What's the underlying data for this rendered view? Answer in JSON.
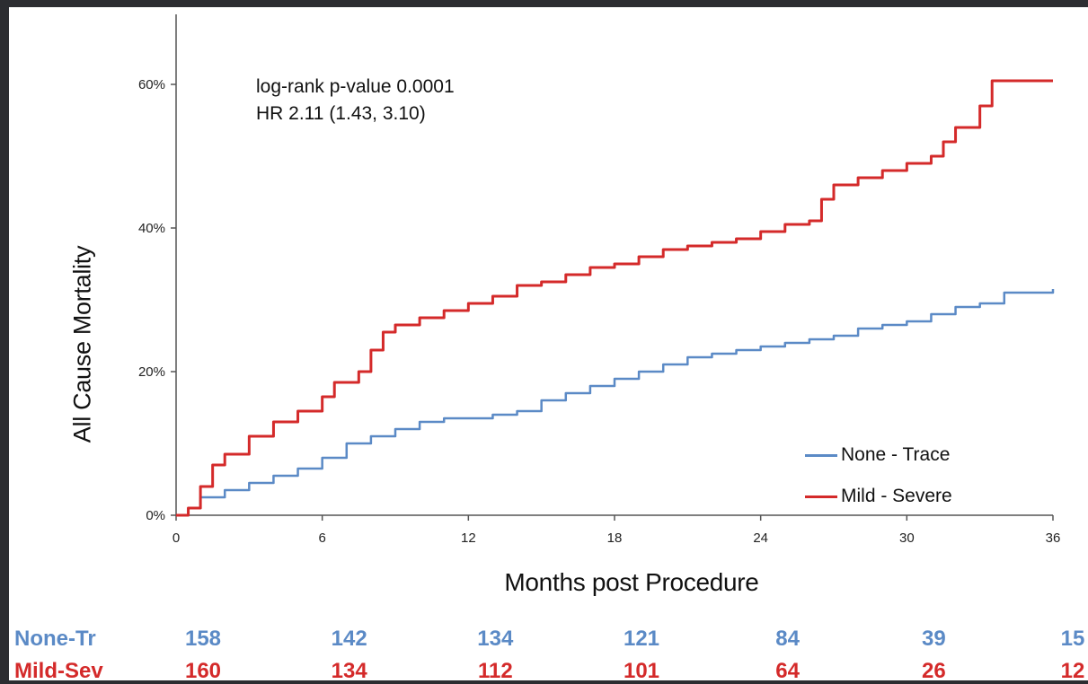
{
  "chart_data": {
    "type": "line",
    "step": true,
    "xlabel": "Months post Procedure",
    "ylabel": "All Cause Mortality",
    "xlim": [
      0,
      36
    ],
    "ylim": [
      0,
      0.68
    ],
    "x_ticks": [
      0,
      6,
      12,
      18,
      24,
      30,
      36
    ],
    "y_ticks": [
      0,
      0.2,
      0.4,
      0.6
    ],
    "y_tick_labels": [
      "0%",
      "20%",
      "40%",
      "60%"
    ],
    "grid": false,
    "legend_position": "bottom-right",
    "annotations": [
      "log-rank p-value 0.0001",
      "HR 2.11 (1.43, 3.10)"
    ],
    "series": [
      {
        "name": "None - Trace",
        "color": "#5b8ac6",
        "points": [
          [
            0,
            0
          ],
          [
            0.5,
            0.01
          ],
          [
            1,
            0.025
          ],
          [
            2,
            0.035
          ],
          [
            3,
            0.045
          ],
          [
            4,
            0.055
          ],
          [
            5,
            0.065
          ],
          [
            6,
            0.08
          ],
          [
            7,
            0.1
          ],
          [
            8,
            0.11
          ],
          [
            9,
            0.12
          ],
          [
            10,
            0.13
          ],
          [
            11,
            0.135
          ],
          [
            12,
            0.135
          ],
          [
            13,
            0.14
          ],
          [
            14,
            0.145
          ],
          [
            15,
            0.16
          ],
          [
            16,
            0.17
          ],
          [
            17,
            0.18
          ],
          [
            18,
            0.19
          ],
          [
            19,
            0.2
          ],
          [
            20,
            0.21
          ],
          [
            21,
            0.22
          ],
          [
            22,
            0.225
          ],
          [
            23,
            0.23
          ],
          [
            24,
            0.235
          ],
          [
            25,
            0.24
          ],
          [
            26,
            0.245
          ],
          [
            27,
            0.25
          ],
          [
            28,
            0.26
          ],
          [
            29,
            0.265
          ],
          [
            30,
            0.27
          ],
          [
            31,
            0.28
          ],
          [
            32,
            0.29
          ],
          [
            33,
            0.295
          ],
          [
            34,
            0.31
          ],
          [
            36,
            0.315
          ]
        ]
      },
      {
        "name": "Mild - Severe",
        "color": "#d42a2a",
        "points": [
          [
            0,
            0
          ],
          [
            0.5,
            0.01
          ],
          [
            1,
            0.04
          ],
          [
            1.5,
            0.07
          ],
          [
            2,
            0.085
          ],
          [
            3,
            0.11
          ],
          [
            4,
            0.13
          ],
          [
            5,
            0.145
          ],
          [
            6,
            0.165
          ],
          [
            6.5,
            0.185
          ],
          [
            7.5,
            0.2
          ],
          [
            8,
            0.23
          ],
          [
            8.5,
            0.255
          ],
          [
            9,
            0.265
          ],
          [
            10,
            0.275
          ],
          [
            11,
            0.285
          ],
          [
            12,
            0.295
          ],
          [
            13,
            0.305
          ],
          [
            14,
            0.32
          ],
          [
            15,
            0.325
          ],
          [
            16,
            0.335
          ],
          [
            17,
            0.345
          ],
          [
            18,
            0.35
          ],
          [
            19,
            0.36
          ],
          [
            20,
            0.37
          ],
          [
            21,
            0.375
          ],
          [
            22,
            0.38
          ],
          [
            23,
            0.385
          ],
          [
            24,
            0.395
          ],
          [
            25,
            0.405
          ],
          [
            26,
            0.41
          ],
          [
            26.5,
            0.44
          ],
          [
            27,
            0.46
          ],
          [
            28,
            0.47
          ],
          [
            29,
            0.48
          ],
          [
            30,
            0.49
          ],
          [
            31,
            0.5
          ],
          [
            31.5,
            0.52
          ],
          [
            32,
            0.54
          ],
          [
            33,
            0.57
          ],
          [
            33.5,
            0.605
          ],
          [
            36,
            0.605
          ]
        ]
      }
    ],
    "risk_table": {
      "rows": [
        {
          "label": "None-Tr",
          "color": "#5b8ac6",
          "values": [
            "158",
            "142",
            "134",
            "121",
            "84",
            "39",
            "15"
          ]
        },
        {
          "label": "Mild-Sev",
          "color": "#d42a2a",
          "values": [
            "160",
            "134",
            "112",
            "101",
            "64",
            "26",
            "12"
          ]
        }
      ]
    }
  }
}
